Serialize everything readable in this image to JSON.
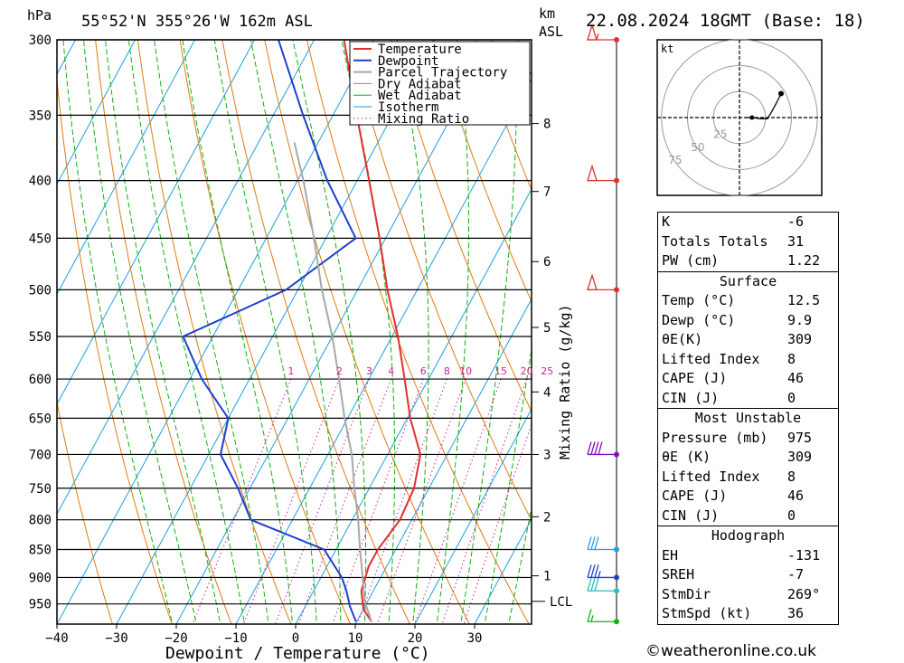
{
  "header": {
    "location": "55°52'N 355°26'W 162m ASL",
    "datetime": "22.08.2024 18GMT (Base: 18)",
    "pressure_unit": "hPa",
    "km_label": "km",
    "asl_label": "ASL"
  },
  "chart_data": {
    "type": "line",
    "title": "55°52'N 355°26'W 162m ASL",
    "xlabel": "Dewpoint / Temperature (°C)",
    "ylabel": "hPa",
    "right_label": "Mixing Ratio (g/kg)",
    "x_ticks": [
      -40,
      -30,
      -20,
      -10,
      0,
      10,
      20,
      30
    ],
    "pressure_levels": [
      300,
      350,
      400,
      450,
      500,
      550,
      600,
      650,
      700,
      750,
      800,
      850,
      900,
      950
    ],
    "ylim": [
      300,
      990
    ],
    "height_km_ticks": [
      {
        "label": "8",
        "p": 356
      },
      {
        "label": "7",
        "p": 409
      },
      {
        "label": "6",
        "p": 472
      },
      {
        "label": "5",
        "p": 540
      },
      {
        "label": "4",
        "p": 616
      },
      {
        "label": "3",
        "p": 700
      },
      {
        "label": "2",
        "p": 795
      },
      {
        "label": "1",
        "p": 897
      }
    ],
    "lcl": {
      "label": "LCL",
      "p": 945
    },
    "mixing_ratio_labels": [
      "1",
      "2",
      "3",
      "4",
      "6",
      "8",
      "10",
      "15",
      "20",
      "25"
    ],
    "mixing_ratio_values": [
      1,
      2,
      3,
      4,
      6,
      8,
      10,
      15,
      20,
      25
    ],
    "legend": [
      "Temperature",
      "Dewpoint",
      "Parcel Trajectory",
      "Dry Adiabat",
      "Wet Adiabat",
      "Isotherm",
      "Mixing Ratio"
    ],
    "colors": {
      "temperature": "#e03030",
      "dewpoint": "#1f3fcf",
      "parcel": "#a8a8a8",
      "dry_adiabat": "#e07a10",
      "wet_adiabat": "#10b010",
      "isotherm": "#1aa0e0",
      "mixing_ratio": "#d0208a"
    },
    "series": [
      {
        "name": "Temperature",
        "points": [
          {
            "p": 985,
            "t": 12.5
          },
          {
            "p": 960,
            "t": 10
          },
          {
            "p": 925,
            "t": 8
          },
          {
            "p": 880,
            "t": 7
          },
          {
            "p": 850,
            "t": 7
          },
          {
            "p": 800,
            "t": 8
          },
          {
            "p": 750,
            "t": 7.5
          },
          {
            "p": 700,
            "t": 5.5
          },
          {
            "p": 650,
            "t": 0.5
          },
          {
            "p": 600,
            "t": -4
          },
          {
            "p": 550,
            "t": -9
          },
          {
            "p": 500,
            "t": -15
          },
          {
            "p": 450,
            "t": -21
          },
          {
            "p": 400,
            "t": -28
          },
          {
            "p": 350,
            "t": -36
          },
          {
            "p": 300,
            "t": -45
          }
        ]
      },
      {
        "name": "Dewpoint",
        "points": [
          {
            "p": 985,
            "t": 9.9
          },
          {
            "p": 955,
            "t": 7.5
          },
          {
            "p": 925,
            "t": 5.5
          },
          {
            "p": 900,
            "t": 3.5
          },
          {
            "p": 850,
            "t": -2
          },
          {
            "p": 800,
            "t": -17
          },
          {
            "p": 750,
            "t": -22
          },
          {
            "p": 700,
            "t": -28
          },
          {
            "p": 650,
            "t": -30
          },
          {
            "p": 600,
            "t": -38
          },
          {
            "p": 550,
            "t": -45
          },
          {
            "p": 500,
            "t": -32
          },
          {
            "p": 450,
            "t": -25
          },
          {
            "p": 400,
            "t": -35
          },
          {
            "p": 350,
            "t": -45
          },
          {
            "p": 300,
            "t": -56
          }
        ]
      },
      {
        "name": "Parcel Trajectory",
        "points": [
          {
            "p": 985,
            "t": 12.5
          },
          {
            "p": 945,
            "t": 9.5
          },
          {
            "p": 900,
            "t": 7
          },
          {
            "p": 850,
            "t": 4
          },
          {
            "p": 800,
            "t": 1
          },
          {
            "p": 750,
            "t": -2.5
          },
          {
            "p": 700,
            "t": -6
          },
          {
            "p": 650,
            "t": -10.5
          },
          {
            "p": 600,
            "t": -15
          },
          {
            "p": 550,
            "t": -20
          },
          {
            "p": 500,
            "t": -26
          },
          {
            "p": 450,
            "t": -32
          },
          {
            "p": 400,
            "t": -39
          },
          {
            "p": 370,
            "t": -44
          }
        ]
      }
    ],
    "wind_barbs": [
      {
        "p": 300,
        "color": "#e03030",
        "speed_kt": 55
      },
      {
        "p": 400,
        "color": "#e03030",
        "speed_kt": 50
      },
      {
        "p": 500,
        "color": "#e03030",
        "speed_kt": 50
      },
      {
        "p": 700,
        "color": "#8010c0",
        "speed_kt": 40
      },
      {
        "p": 850,
        "color": "#1aa0e0",
        "speed_kt": 30
      },
      {
        "p": 900,
        "color": "#1f3fcf",
        "speed_kt": 35
      },
      {
        "p": 925,
        "color": "#20c0c0",
        "speed_kt": 30
      },
      {
        "p": 985,
        "color": "#10b010",
        "speed_kt": 15
      }
    ],
    "hodograph": {
      "unit_label": "kt",
      "ring_labels": [
        "25",
        "50",
        "75"
      ],
      "points": [
        {
          "u": 6,
          "v": 0
        },
        {
          "u": 12,
          "v": 0
        },
        {
          "u": 20,
          "v": -1
        },
        {
          "u": 27,
          "v": -1
        },
        {
          "u": 30,
          "v": 4
        },
        {
          "u": 35,
          "v": 13
        },
        {
          "u": 40,
          "v": 23
        }
      ]
    }
  },
  "indices": {
    "k_label": "K",
    "k": "-6",
    "tt_label": "Totals Totals",
    "tt": "31",
    "pw_label": "PW (cm)",
    "pw": "1.22"
  },
  "surface": {
    "title": "Surface",
    "temp_label": "Temp (°C)",
    "temp": "12.5",
    "dewp_label": "Dewp (°C)",
    "dewp": "9.9",
    "theta_label": "θE(K)",
    "theta": "309",
    "li_label": "Lifted Index",
    "li": "8",
    "cape_label": "CAPE (J)",
    "cape": "46",
    "cin_label": "CIN (J)",
    "cin": "0"
  },
  "most_unstable": {
    "title": "Most Unstable",
    "pressure_label": "Pressure (mb)",
    "pressure": "975",
    "theta_label": "θE (K)",
    "theta": "309",
    "li_label": "Lifted Index",
    "li": "8",
    "cape_label": "CAPE (J)",
    "cape": "46",
    "cin_label": "CIN (J)",
    "cin": "0"
  },
  "hodograph_table": {
    "title": "Hodograph",
    "eh_label": "EH",
    "eh": "-131",
    "sreh_label": "SREH",
    "sreh": "-7",
    "stmdir_label": "StmDir",
    "stmdir": "269°",
    "stmspd_label": "StmSpd (kt)",
    "stmspd": "36"
  },
  "footer": "©weatheronline.co.uk"
}
